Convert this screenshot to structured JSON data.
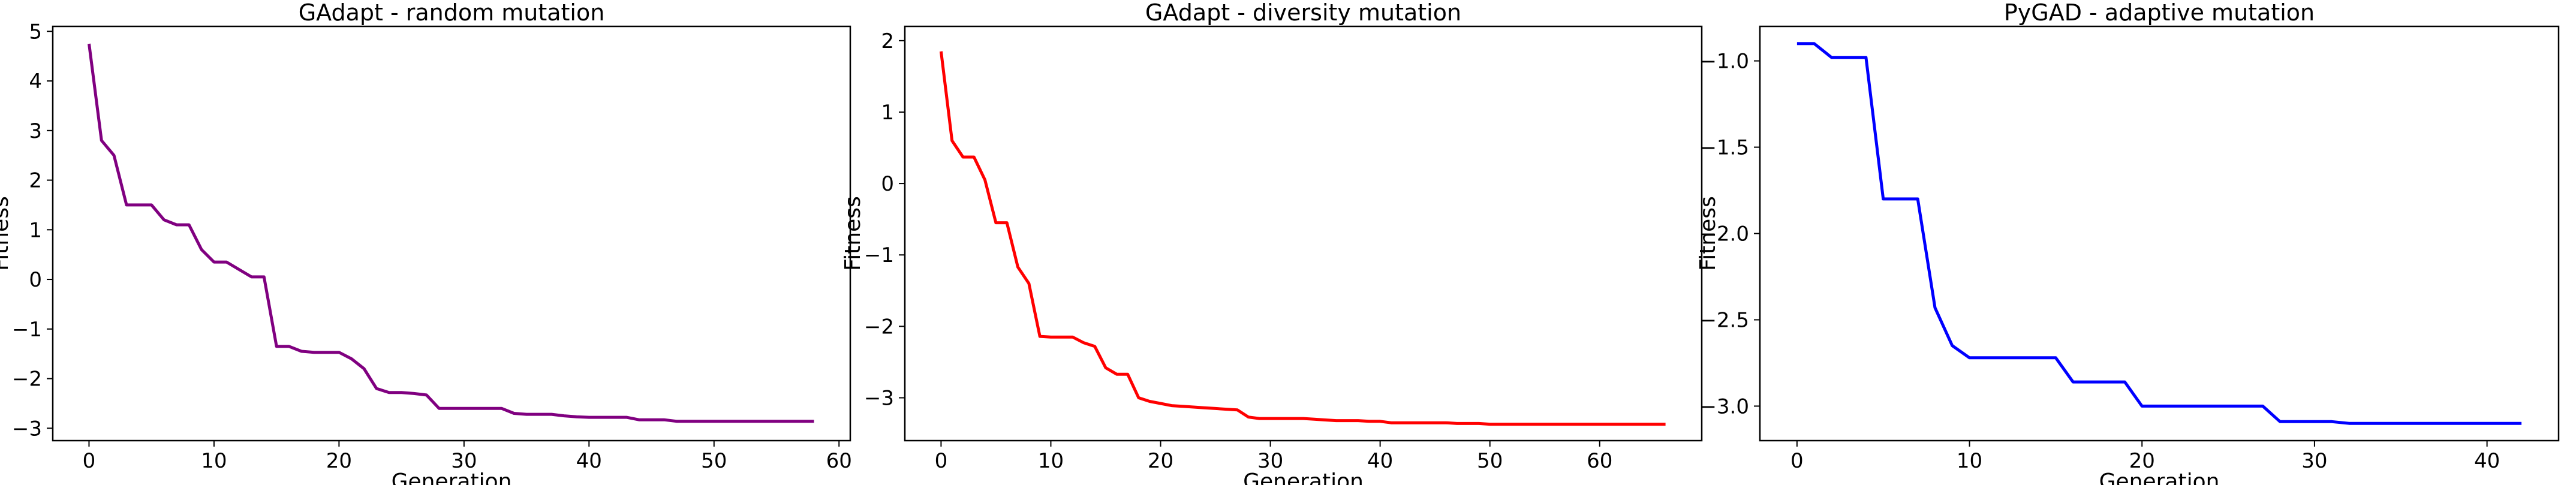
{
  "chart_data": [
    {
      "type": "line",
      "title": "GAdapt - random mutation",
      "xlabel": "Generation",
      "ylabel": "Fitness",
      "xlim": [
        -2.9,
        60.9
      ],
      "ylim": [
        -3.25,
        5.1
      ],
      "xticks": [
        0,
        10,
        20,
        30,
        40,
        50,
        60
      ],
      "yticks": [
        -3,
        -2,
        -1,
        0,
        1,
        2,
        3,
        4,
        5
      ],
      "grid": false,
      "color": "#800080",
      "series": [
        {
          "x": [
            0,
            1,
            2,
            3,
            4,
            5,
            6,
            7,
            8,
            9,
            10,
            11,
            12,
            13,
            14,
            15,
            16,
            17,
            18,
            19,
            20,
            21,
            22,
            23,
            24,
            25,
            26,
            27,
            28,
            29,
            30,
            31,
            32,
            33,
            34,
            35,
            36,
            37,
            38,
            39,
            40,
            41,
            42,
            43,
            44,
            45,
            46,
            47,
            48,
            49,
            50,
            51,
            52,
            53,
            54,
            55,
            56,
            57,
            58
          ],
          "y": [
            4.75,
            2.8,
            2.5,
            1.5,
            1.5,
            1.5,
            1.2,
            1.1,
            1.1,
            0.6,
            0.35,
            0.35,
            0.2,
            0.05,
            0.05,
            -1.35,
            -1.35,
            -1.45,
            -1.47,
            -1.47,
            -1.47,
            -1.6,
            -1.8,
            -2.2,
            -2.28,
            -2.28,
            -2.3,
            -2.33,
            -2.6,
            -2.6,
            -2.6,
            -2.6,
            -2.6,
            -2.6,
            -2.7,
            -2.72,
            -2.72,
            -2.72,
            -2.75,
            -2.77,
            -2.78,
            -2.78,
            -2.78,
            -2.78,
            -2.83,
            -2.83,
            -2.83,
            -2.86,
            -2.86,
            -2.86,
            -2.86,
            -2.86,
            -2.86,
            -2.86,
            -2.86,
            -2.86,
            -2.86,
            -2.86,
            -2.86
          ]
        }
      ]
    },
    {
      "type": "line",
      "title": "GAdapt - diversity mutation",
      "xlabel": "Generation",
      "ylabel": "Fitness",
      "xlim": [
        -3.3,
        69.3
      ],
      "ylim": [
        -3.6,
        2.2
      ],
      "xticks": [
        0,
        10,
        20,
        30,
        40,
        50,
        60
      ],
      "yticks": [
        -3,
        -2,
        -1,
        0,
        1,
        2
      ],
      "grid": false,
      "color": "#ff0000",
      "series": [
        {
          "x": [
            0,
            1,
            2,
            3,
            4,
            5,
            6,
            7,
            8,
            9,
            10,
            11,
            12,
            13,
            14,
            15,
            16,
            17,
            18,
            19,
            20,
            21,
            22,
            23,
            24,
            25,
            26,
            27,
            28,
            29,
            30,
            31,
            32,
            33,
            34,
            35,
            36,
            37,
            38,
            39,
            40,
            41,
            42,
            43,
            44,
            45,
            46,
            47,
            48,
            49,
            50,
            51,
            52,
            53,
            54,
            55,
            56,
            57,
            58,
            59,
            60,
            61,
            62,
            63,
            64,
            65,
            66
          ],
          "y": [
            1.85,
            0.6,
            0.37,
            0.37,
            0.05,
            -0.55,
            -0.55,
            -1.17,
            -1.4,
            -2.14,
            -2.15,
            -2.15,
            -2.15,
            -2.23,
            -2.28,
            -2.58,
            -2.67,
            -2.67,
            -3.0,
            -3.05,
            -3.08,
            -3.11,
            -3.12,
            -3.13,
            -3.14,
            -3.15,
            -3.16,
            -3.17,
            -3.27,
            -3.29,
            -3.29,
            -3.29,
            -3.29,
            -3.29,
            -3.3,
            -3.31,
            -3.32,
            -3.32,
            -3.32,
            -3.33,
            -3.33,
            -3.35,
            -3.35,
            -3.35,
            -3.35,
            -3.35,
            -3.35,
            -3.36,
            -3.36,
            -3.36,
            -3.37,
            -3.37,
            -3.37,
            -3.37,
            -3.37,
            -3.37,
            -3.37,
            -3.37,
            -3.37,
            -3.37,
            -3.37,
            -3.37,
            -3.37,
            -3.37,
            -3.37,
            -3.37,
            -3.37
          ]
        }
      ]
    },
    {
      "type": "line",
      "title": "PyGAD - adaptive mutation",
      "xlabel": "Generation",
      "ylabel": "Fitness",
      "xlim": [
        -2.15,
        44.15
      ],
      "ylim": [
        -3.2,
        -0.8
      ],
      "xticks": [
        0,
        10,
        20,
        30,
        40
      ],
      "ytick_labels": [
        "−3.0",
        "−2.5",
        "−2.0",
        "−1.5",
        "−1.0"
      ],
      "yticks": [
        -3.0,
        -2.5,
        -2.0,
        -1.5,
        -1.0
      ],
      "grid": false,
      "color": "#0000ff",
      "series": [
        {
          "x": [
            0,
            1,
            2,
            3,
            4,
            5,
            6,
            7,
            8,
            9,
            10,
            11,
            12,
            13,
            14,
            15,
            16,
            17,
            18,
            19,
            20,
            21,
            22,
            23,
            24,
            25,
            26,
            27,
            28,
            29,
            30,
            31,
            32,
            33,
            34,
            35,
            36,
            37,
            38,
            39,
            40,
            41,
            42
          ],
          "y": [
            -0.9,
            -0.9,
            -0.98,
            -0.98,
            -0.98,
            -1.8,
            -1.8,
            -1.8,
            -2.43,
            -2.65,
            -2.72,
            -2.72,
            -2.72,
            -2.72,
            -2.72,
            -2.72,
            -2.86,
            -2.86,
            -2.86,
            -2.86,
            -3.0,
            -3.0,
            -3.0,
            -3.0,
            -3.0,
            -3.0,
            -3.0,
            -3.0,
            -3.09,
            -3.09,
            -3.09,
            -3.09,
            -3.1,
            -3.1,
            -3.1,
            -3.1,
            -3.1,
            -3.1,
            -3.1,
            -3.1,
            -3.1,
            -3.1,
            -3.1
          ]
        }
      ]
    }
  ]
}
